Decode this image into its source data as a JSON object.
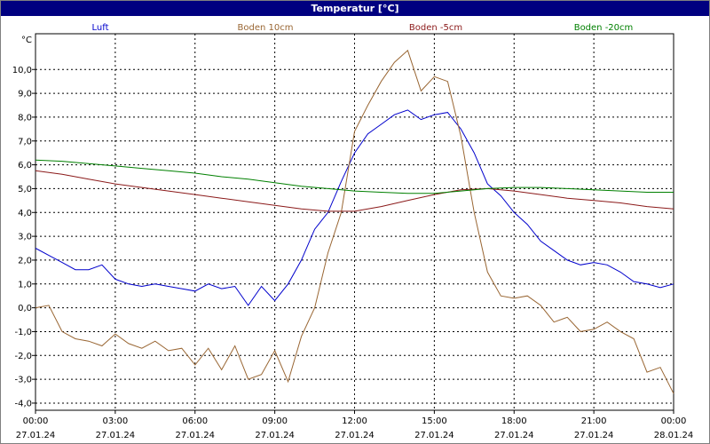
{
  "window": {
    "title": "Temperatur [°C]"
  },
  "chart_data": {
    "type": "line",
    "title": "Temperatur [°C]",
    "ylabel": "°C",
    "ylim": [
      -4.3,
      11.5
    ],
    "yticks": [
      "10,0",
      "9,0",
      "8,0",
      "7,0",
      "6,0",
      "5,0",
      "4,0",
      "3,0",
      "2,0",
      "1,0",
      "0,0",
      "-1,0",
      "-2,0",
      "-3,0",
      "-4,0"
    ],
    "ytick_values": [
      10,
      9,
      8,
      7,
      6,
      5,
      4,
      3,
      2,
      1,
      0,
      -1,
      -2,
      -3,
      -4
    ],
    "xlim": [
      0,
      24
    ],
    "xticks": [
      {
        "time": "00:00",
        "date": "27.01.24",
        "h": 0
      },
      {
        "time": "03:00",
        "date": "27.01.24",
        "h": 3
      },
      {
        "time": "06:00",
        "date": "27.01.24",
        "h": 6
      },
      {
        "time": "09:00",
        "date": "27.01.24",
        "h": 9
      },
      {
        "time": "12:00",
        "date": "27.01.24",
        "h": 12
      },
      {
        "time": "15:00",
        "date": "27.01.24",
        "h": 15
      },
      {
        "time": "18:00",
        "date": "27.01.24",
        "h": 18
      },
      {
        "time": "21:00",
        "date": "27.01.24",
        "h": 21
      },
      {
        "time": "00:00",
        "date": "28.01.24",
        "h": 24
      }
    ],
    "grid": true,
    "legend_position": "top",
    "series": [
      {
        "name": "Luft",
        "color": "#0000cc",
        "x": [
          0,
          0.5,
          1,
          1.5,
          2,
          2.5,
          3,
          3.5,
          4,
          4.5,
          5,
          5.5,
          6,
          6.5,
          7,
          7.5,
          8,
          8.5,
          9,
          9.5,
          10,
          10.5,
          11,
          11.5,
          12,
          12.5,
          13,
          13.5,
          14,
          14.5,
          15,
          15.5,
          16,
          16.5,
          17,
          17.5,
          18,
          18.5,
          19,
          19.5,
          20,
          20.5,
          21,
          21.5,
          22,
          22.5,
          23,
          23.5,
          24
        ],
        "y": [
          2.5,
          2.2,
          1.9,
          1.6,
          1.6,
          1.8,
          1.2,
          1.0,
          0.9,
          1.0,
          0.9,
          0.8,
          0.7,
          1.0,
          0.8,
          0.9,
          0.1,
          0.9,
          0.3,
          1.0,
          2.0,
          3.3,
          4.0,
          5.3,
          6.5,
          7.3,
          7.7,
          8.1,
          8.3,
          7.9,
          8.1,
          8.2,
          7.5,
          6.5,
          5.2,
          4.7,
          4.0,
          3.5,
          2.8,
          2.4,
          2.0,
          1.8,
          1.9,
          1.8,
          1.5,
          1.1,
          1.0,
          0.85,
          1.0
        ]
      },
      {
        "name": "Boden 10cm",
        "color": "#996633",
        "x": [
          0,
          0.5,
          1,
          1.5,
          2,
          2.5,
          3,
          3.5,
          4,
          4.5,
          5,
          5.5,
          6,
          6.5,
          7,
          7.5,
          8,
          8.5,
          9,
          9.5,
          10,
          10.5,
          11,
          11.5,
          12,
          12.5,
          13,
          13.5,
          14,
          14.5,
          15,
          15.5,
          16,
          16.5,
          17,
          17.5,
          18,
          18.5,
          19,
          19.5,
          20,
          20.5,
          21,
          21.5,
          22,
          22.5,
          23,
          23.5,
          24
        ],
        "y": [
          0.0,
          0.1,
          -1.0,
          -1.3,
          -1.4,
          -1.6,
          -1.1,
          -1.5,
          -1.7,
          -1.4,
          -1.8,
          -1.7,
          -2.4,
          -1.7,
          -2.6,
          -1.6,
          -3.0,
          -2.8,
          -1.8,
          -3.1,
          -1.2,
          0.0,
          2.3,
          4.0,
          7.4,
          8.5,
          9.5,
          10.3,
          10.8,
          9.1,
          9.7,
          9.5,
          7.2,
          4.0,
          1.5,
          0.5,
          0.4,
          0.5,
          0.1,
          -0.6,
          -0.4,
          -1.0,
          -0.9,
          -0.6,
          -1.0,
          -1.3,
          -2.7,
          -2.5,
          -3.6
        ]
      },
      {
        "name": "Boden -5cm",
        "color": "#8b1a1a",
        "x": [
          0,
          1,
          2,
          3,
          4,
          5,
          6,
          7,
          8,
          9,
          10,
          11,
          12,
          13,
          14,
          15,
          16,
          17,
          18,
          19,
          20,
          21,
          22,
          23,
          24
        ],
        "y": [
          5.75,
          5.6,
          5.4,
          5.2,
          5.05,
          4.9,
          4.75,
          4.6,
          4.45,
          4.3,
          4.15,
          4.05,
          4.05,
          4.25,
          4.5,
          4.75,
          4.95,
          5.0,
          4.9,
          4.75,
          4.6,
          4.5,
          4.4,
          4.25,
          4.15
        ]
      },
      {
        "name": "Boden -20cm",
        "color": "#008000",
        "x": [
          0,
          1,
          2,
          3,
          4,
          5,
          6,
          7,
          8,
          9,
          10,
          11,
          12,
          13,
          14,
          15,
          16,
          17,
          18,
          19,
          20,
          21,
          22,
          23,
          24
        ],
        "y": [
          6.2,
          6.15,
          6.05,
          5.95,
          5.85,
          5.75,
          5.65,
          5.5,
          5.4,
          5.25,
          5.1,
          5.0,
          4.9,
          4.85,
          4.8,
          4.8,
          4.9,
          5.0,
          5.05,
          5.05,
          5.0,
          4.95,
          4.9,
          4.85,
          4.85
        ]
      }
    ]
  }
}
